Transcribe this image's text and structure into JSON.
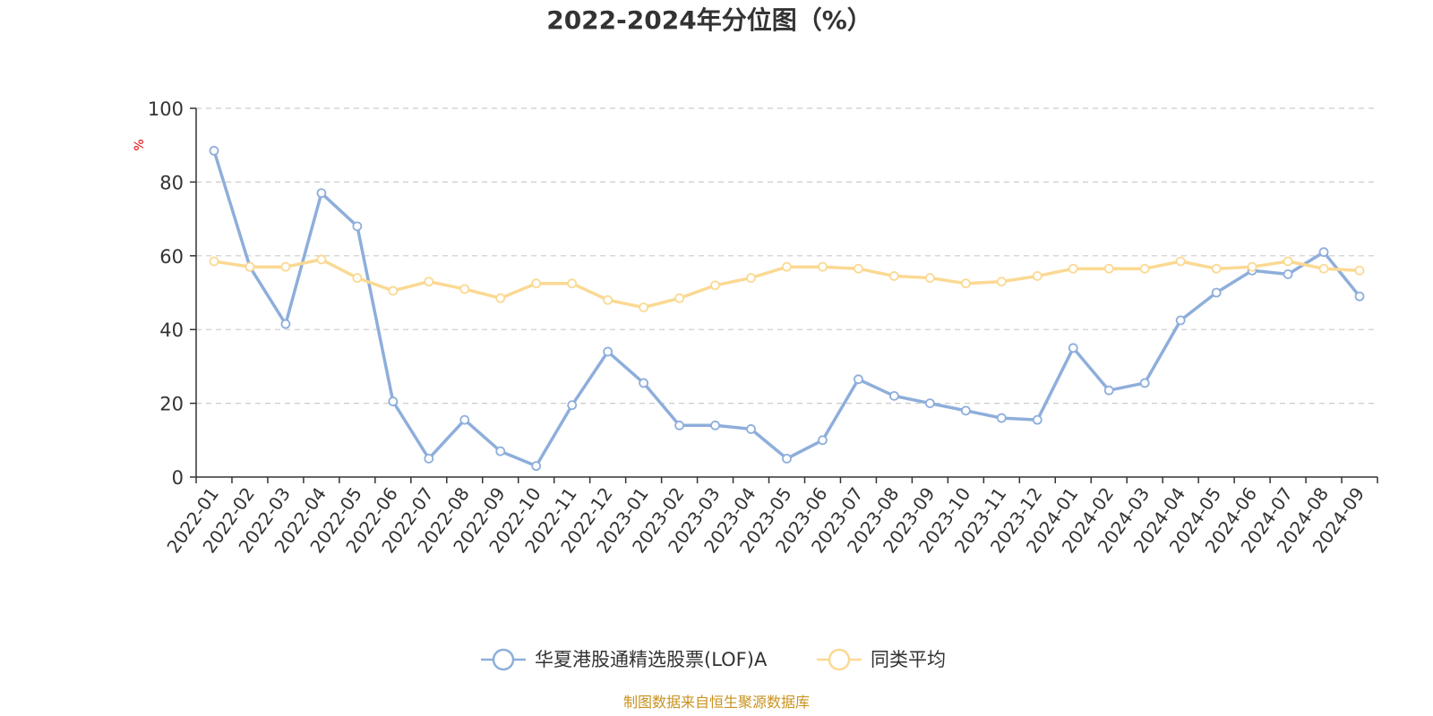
{
  "chart_data": {
    "type": "line",
    "title": "2022-2024年分位图（%）",
    "ylabel": "%",
    "ylim": [
      0,
      100
    ],
    "yticks": [
      0,
      20,
      40,
      60,
      80,
      100
    ],
    "grid": true,
    "legend_position": "bottom",
    "categories": [
      "2022-01",
      "2022-02",
      "2022-03",
      "2022-04",
      "2022-05",
      "2022-06",
      "2022-07",
      "2022-08",
      "2022-09",
      "2022-10",
      "2022-11",
      "2022-12",
      "2023-01",
      "2023-02",
      "2023-03",
      "2023-04",
      "2023-05",
      "2023-06",
      "2023-07",
      "2023-08",
      "2023-09",
      "2023-10",
      "2023-11",
      "2023-12",
      "2024-01",
      "2024-02",
      "2024-03",
      "2024-04",
      "2024-05",
      "2024-06",
      "2024-07",
      "2024-08",
      "2024-09"
    ],
    "series": [
      {
        "name": "华夏港股通精选股票(LOF)A",
        "color": "#8eaedb",
        "values": [
          88.5,
          57,
          41.5,
          77,
          68,
          20.5,
          5,
          15.5,
          7,
          3,
          19.5,
          34,
          25.5,
          14,
          14,
          13,
          5,
          10,
          26.5,
          22,
          20,
          18,
          16,
          15.5,
          35,
          23.5,
          25.5,
          42.5,
          50,
          56,
          55,
          61,
          49
        ]
      },
      {
        "name": "同类平均",
        "color": "#fbd993",
        "values": [
          58.5,
          57,
          57,
          59,
          54,
          50.5,
          53,
          51,
          48.5,
          52.5,
          52.5,
          48,
          46,
          48.5,
          52,
          54,
          57,
          57,
          56.5,
          54.5,
          54,
          52.5,
          53,
          54.5,
          56.5,
          56.5,
          56.5,
          58.5,
          56.5,
          57,
          58.5,
          56.5,
          56
        ]
      }
    ]
  },
  "footer": {
    "source": "制图数据来自恒生聚源数据库"
  }
}
